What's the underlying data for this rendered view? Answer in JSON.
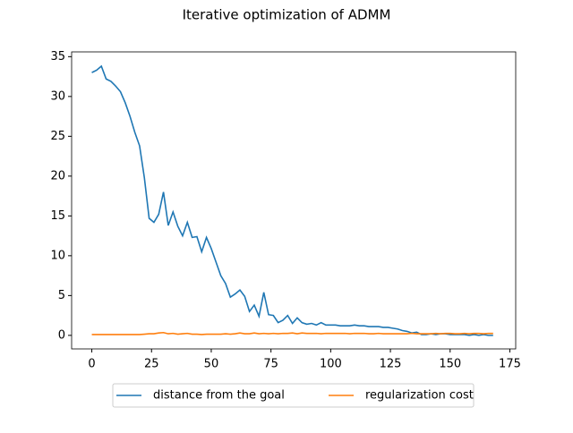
{
  "chart_data": {
    "type": "line",
    "title": "Iterative optimization of ADMM",
    "x": [
      0,
      2,
      4,
      6,
      8,
      10,
      12,
      14,
      16,
      18,
      20,
      22,
      24,
      26,
      28,
      30,
      32,
      34,
      36,
      38,
      40,
      42,
      44,
      46,
      48,
      50,
      52,
      54,
      56,
      58,
      60,
      62,
      64,
      66,
      68,
      70,
      72,
      74,
      76,
      78,
      80,
      82,
      84,
      86,
      88,
      90,
      92,
      94,
      96,
      98,
      100,
      102,
      104,
      106,
      108,
      110,
      112,
      114,
      116,
      118,
      120,
      122,
      124,
      126,
      128,
      130,
      132,
      134,
      136,
      138,
      140,
      142,
      144,
      146,
      148,
      150,
      152,
      154,
      156,
      158,
      160,
      162,
      164,
      166,
      168
    ],
    "series": [
      {
        "name": "distance from the goal",
        "color": "#1f77b4",
        "values": [
          33.0,
          33.3,
          33.8,
          32.2,
          31.9,
          31.3,
          30.6,
          29.2,
          27.5,
          25.5,
          23.8,
          19.8,
          14.7,
          14.2,
          15.2,
          18.0,
          13.8,
          15.5,
          13.7,
          12.5,
          14.2,
          12.3,
          12.4,
          10.5,
          12.3,
          10.9,
          9.2,
          7.5,
          6.5,
          4.8,
          5.2,
          5.7,
          4.9,
          3.0,
          3.8,
          2.4,
          5.4,
          2.6,
          2.5,
          1.6,
          1.9,
          2.5,
          1.5,
          2.2,
          1.6,
          1.4,
          1.5,
          1.3,
          1.6,
          1.3,
          1.3,
          1.3,
          1.2,
          1.2,
          1.2,
          1.3,
          1.2,
          1.2,
          1.1,
          1.1,
          1.1,
          1.0,
          1.0,
          0.9,
          0.8,
          0.6,
          0.5,
          0.3,
          0.4,
          0.1,
          0.1,
          0.2,
          0.1,
          0.2,
          0.2,
          0.1,
          0.1,
          0.1,
          0.1,
          0.0,
          0.1,
          0.0,
          0.1,
          0.0,
          0.0
        ]
      },
      {
        "name": "regularization cost",
        "color": "#ff7f0e",
        "values": [
          0.1,
          0.1,
          0.1,
          0.1,
          0.1,
          0.1,
          0.1,
          0.1,
          0.1,
          0.1,
          0.1,
          0.15,
          0.2,
          0.2,
          0.3,
          0.35,
          0.2,
          0.25,
          0.15,
          0.2,
          0.25,
          0.15,
          0.15,
          0.1,
          0.15,
          0.15,
          0.15,
          0.15,
          0.2,
          0.15,
          0.2,
          0.3,
          0.2,
          0.2,
          0.3,
          0.2,
          0.25,
          0.2,
          0.25,
          0.2,
          0.25,
          0.25,
          0.3,
          0.2,
          0.3,
          0.25,
          0.25,
          0.25,
          0.2,
          0.25,
          0.25,
          0.25,
          0.25,
          0.25,
          0.2,
          0.25,
          0.25,
          0.25,
          0.2,
          0.2,
          0.25,
          0.2,
          0.2,
          0.2,
          0.2,
          0.2,
          0.2,
          0.25,
          0.2,
          0.2,
          0.2,
          0.2,
          0.25,
          0.2,
          0.25,
          0.25,
          0.2,
          0.2,
          0.25,
          0.2,
          0.25,
          0.25,
          0.2,
          0.25,
          0.25
        ]
      }
    ],
    "xlim": [
      -8.45,
      177.45
    ],
    "xticks": [
      0,
      25,
      50,
      75,
      100,
      125,
      150,
      175
    ],
    "ylim": [
      -1.7,
      35.6
    ],
    "yticks": [
      0,
      5,
      10,
      15,
      20,
      25,
      30,
      35
    ],
    "legend": "lower center"
  }
}
